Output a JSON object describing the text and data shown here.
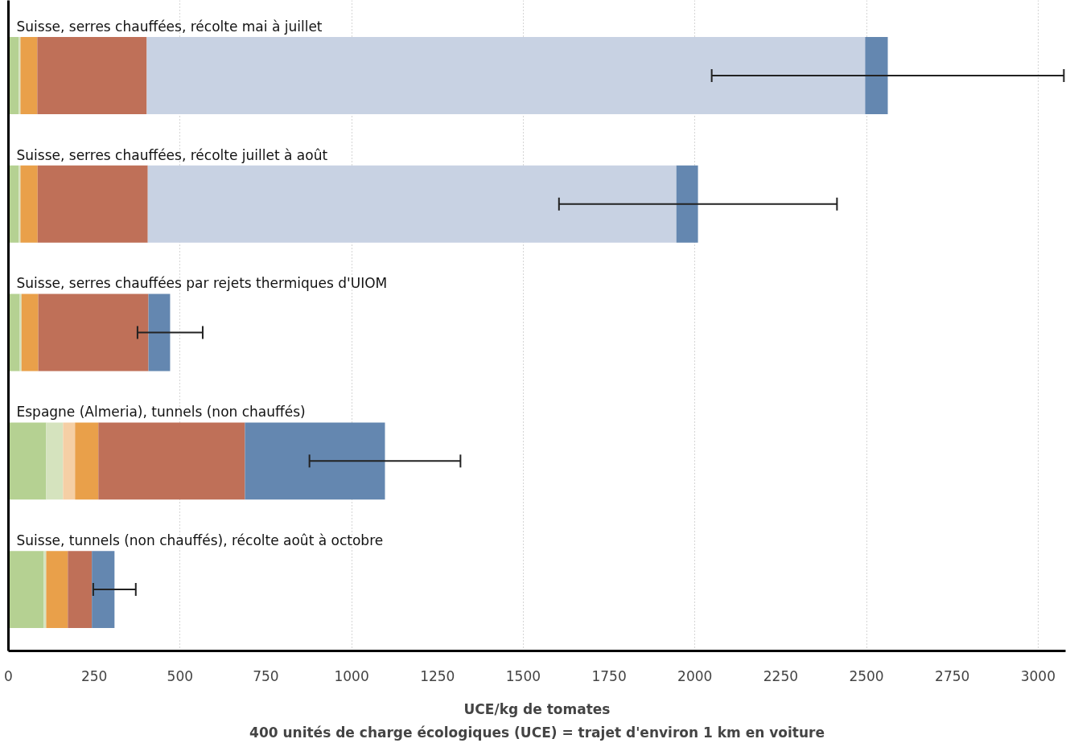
{
  "chart_data": {
    "type": "bar",
    "orientation": "horizontal",
    "stacked": true,
    "categories": [
      "Suisse, serres chauffées, récolte mai à juillet",
      "Suisse, serres chauffées, récolte juillet à août",
      "Suisse, serres chauffées par rejets thermiques d'UIOM",
      "Espagne (Almeria), tunnels (non chauffés)",
      "Suisse, tunnels (non chauffés), récolte août à octobre"
    ],
    "series": [
      {
        "color": "#b5d192",
        "values": [
          30,
          30,
          33,
          110,
          103
        ]
      },
      {
        "color": "#d5e3be",
        "values": [
          5,
          5,
          5,
          49,
          7
        ]
      },
      {
        "color": "#f5cfa5",
        "values": [
          0,
          0,
          0,
          35,
          0
        ]
      },
      {
        "color": "#e9a04a",
        "values": [
          49,
          50,
          49,
          68,
          63
        ]
      },
      {
        "color": "#bf7058",
        "values": [
          319,
          321,
          321,
          427,
          70
        ]
      },
      {
        "color": "#c8d2e3",
        "values": [
          2093,
          1540,
          0,
          0,
          0
        ]
      },
      {
        "color": "#6487b0",
        "values": [
          66,
          63,
          63,
          408,
          66
        ],
        "errors": [
          513,
          405,
          95,
          220,
          62
        ]
      }
    ],
    "xlim": [
      0,
      3080
    ],
    "xticks": [
      0,
      250,
      500,
      750,
      1000,
      1250,
      1500,
      1750,
      2000,
      2250,
      2500,
      2750,
      3000
    ],
    "xlabel": "UCE/kg de tomates",
    "annotations": [
      "400 unités de charge écologiques (UCE) = trajet d'environ 1 km en voiture"
    ],
    "grid": "x",
    "tick_labels": "x"
  }
}
